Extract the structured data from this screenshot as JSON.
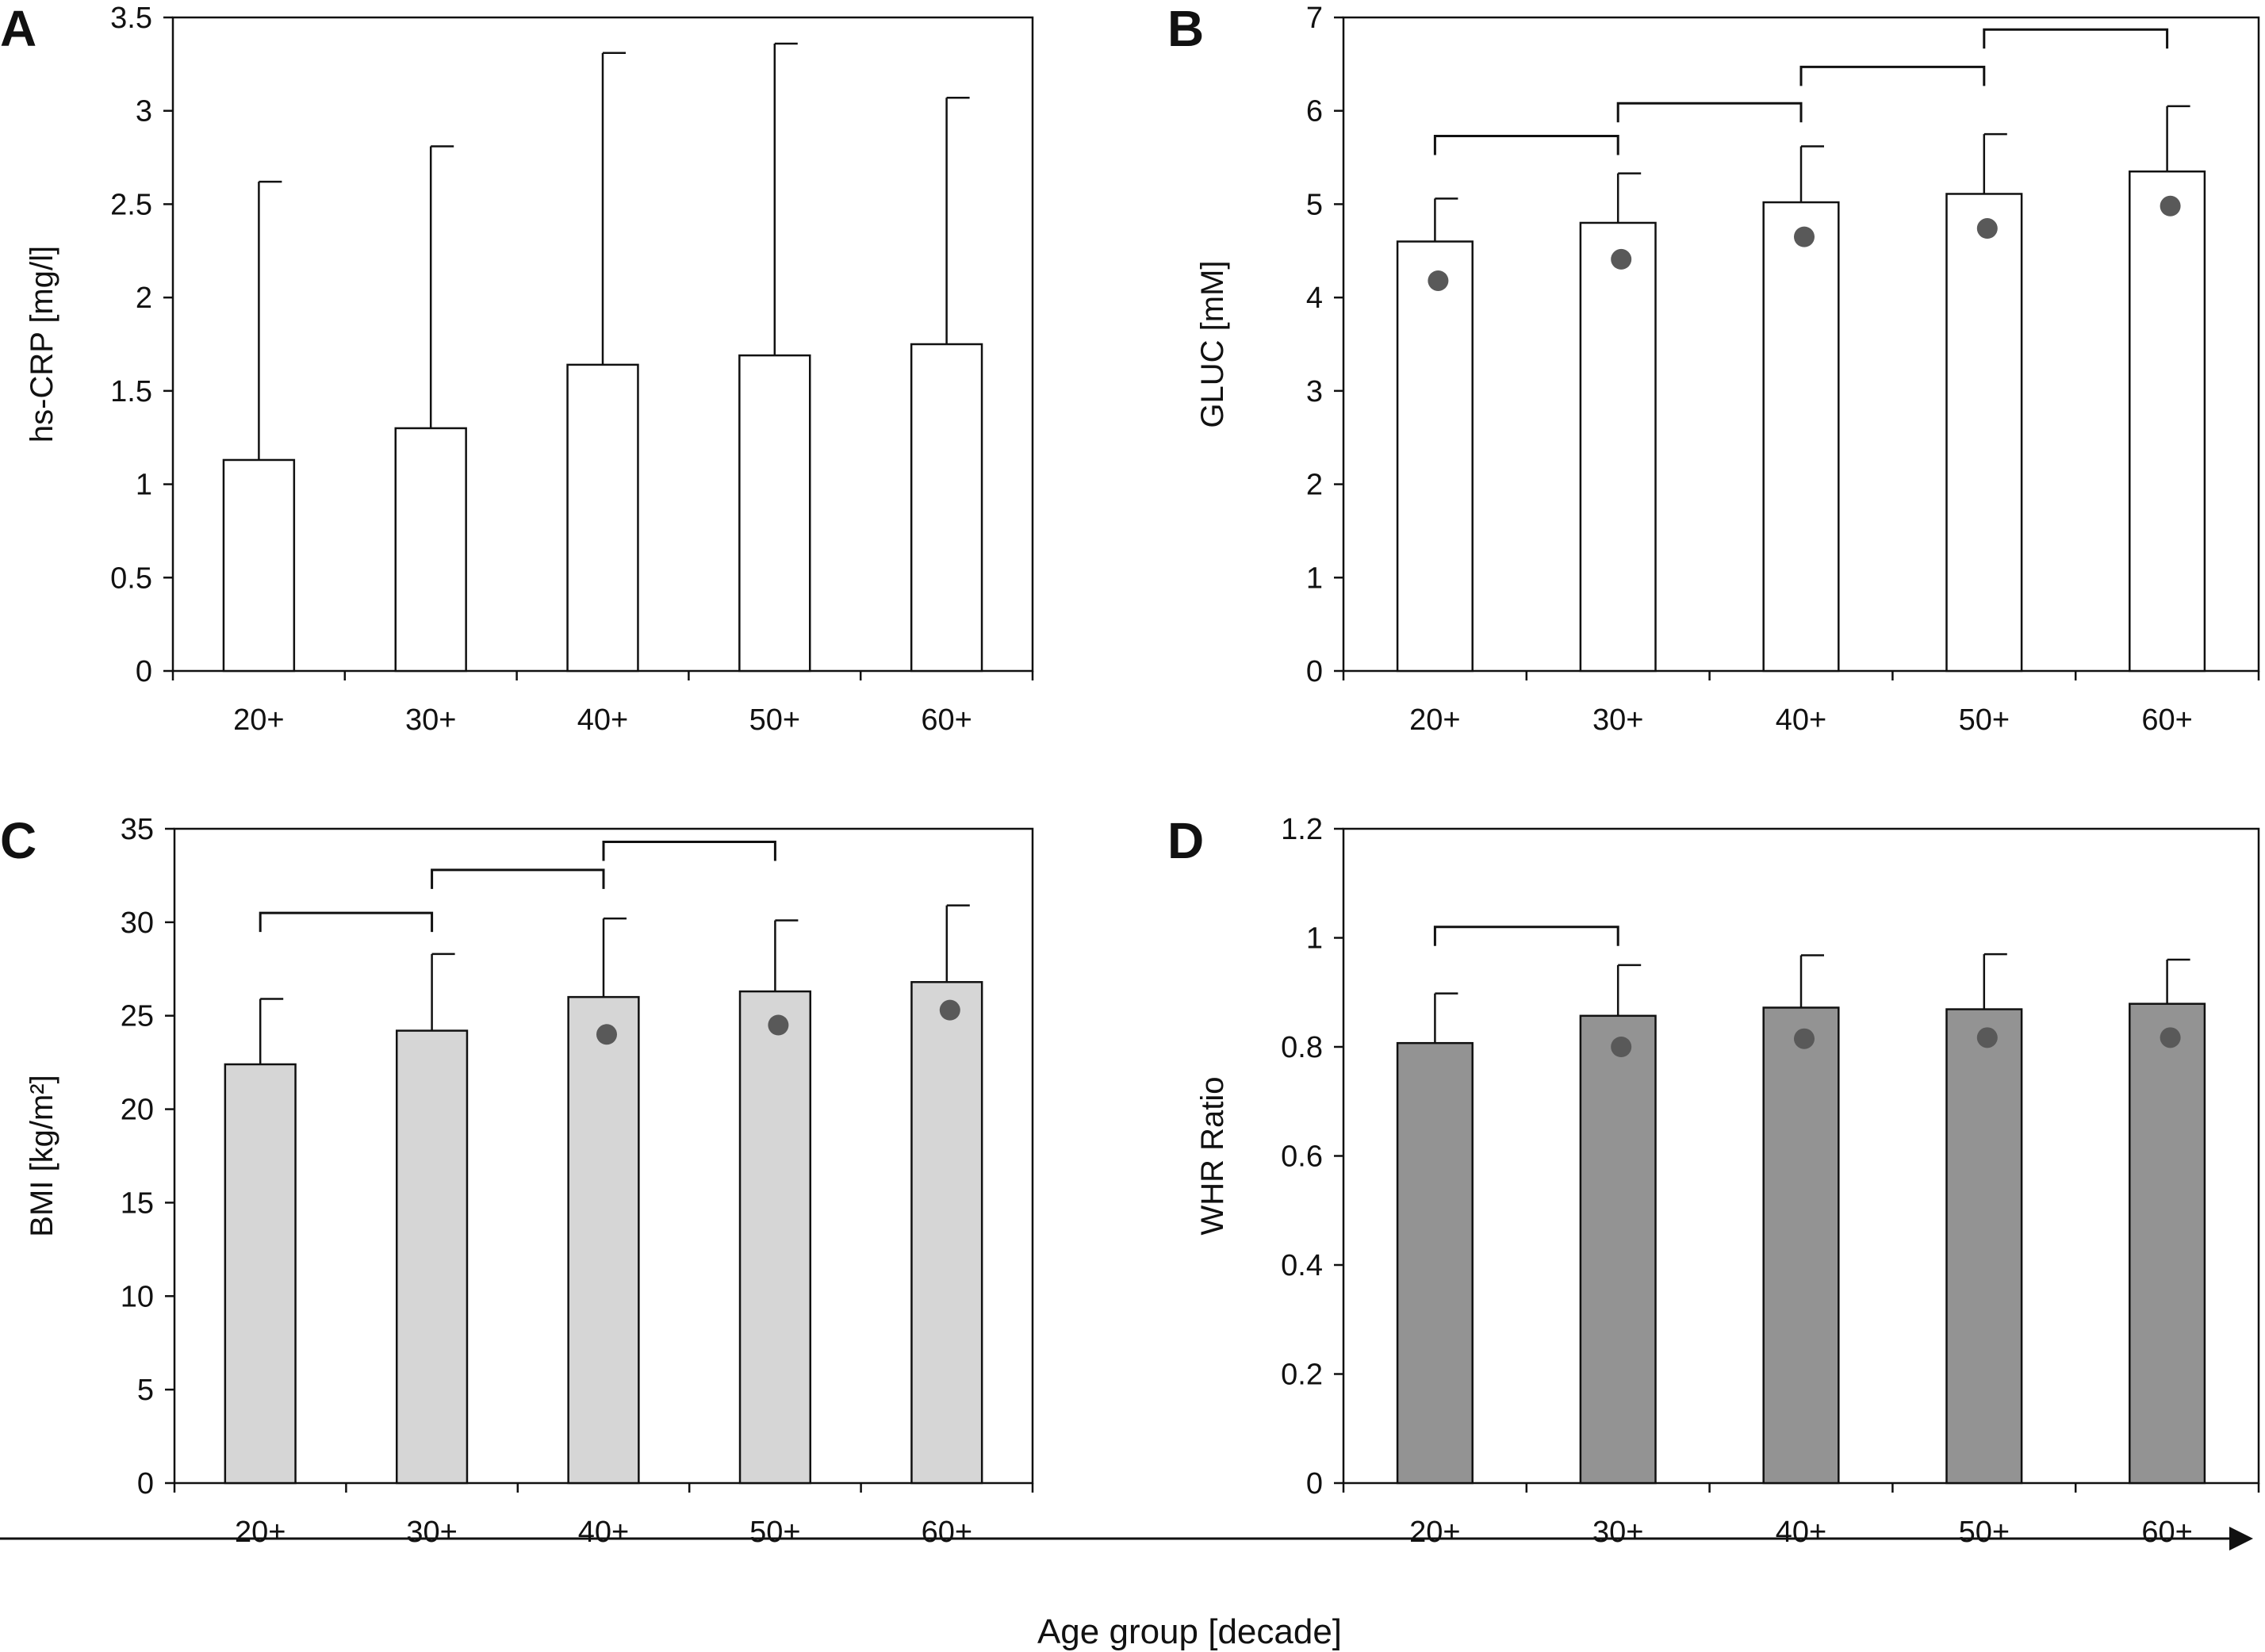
{
  "figure": {
    "xlabel": "Age group [decade]",
    "colors": {
      "axis": "#111111",
      "bar_white": "#ffffff",
      "bar_light": "#d6d6d6",
      "bar_dark": "#939393",
      "dot": "#595959"
    }
  },
  "chart_data": [
    {
      "panel": "A",
      "type": "bar",
      "ylabel": "hs-CRP [mg/l]",
      "ylim": [
        0,
        3.5
      ],
      "yticks": [
        "0",
        "0.5",
        "1",
        "1.5",
        "2",
        "2.5",
        "3",
        "3.5"
      ],
      "categories": [
        "20+",
        "30+",
        "40+",
        "50+",
        "60+"
      ],
      "values": [
        1.13,
        1.3,
        1.64,
        1.69,
        1.75
      ],
      "error_upper": [
        2.62,
        2.81,
        3.31,
        3.36,
        3.07
      ],
      "medians": [],
      "bar_color": "#ffffff",
      "brackets": []
    },
    {
      "panel": "B",
      "type": "bar",
      "ylabel": "GLUC [mM]",
      "ylim": [
        0,
        7
      ],
      "yticks": [
        "0",
        "1",
        "2",
        "3",
        "4",
        "5",
        "6",
        "7"
      ],
      "categories": [
        "20+",
        "30+",
        "40+",
        "50+",
        "60+"
      ],
      "values": [
        4.6,
        4.8,
        5.02,
        5.11,
        5.35
      ],
      "error_upper": [
        5.06,
        5.33,
        5.62,
        5.75,
        6.05
      ],
      "medians": [
        4.18,
        4.41,
        4.65,
        4.74,
        4.98
      ],
      "bar_color": "#ffffff",
      "brackets": [
        {
          "from": 0,
          "to": 1,
          "y": 5.73
        },
        {
          "from": 1,
          "to": 2,
          "y": 6.08
        },
        {
          "from": 2,
          "to": 3,
          "y": 6.47
        },
        {
          "from": 3,
          "to": 4,
          "y": 6.87
        }
      ]
    },
    {
      "panel": "C",
      "type": "bar",
      "ylabel": "BMI [kg/m²]",
      "ylim": [
        0,
        35
      ],
      "yticks": [
        "0",
        "5",
        "10",
        "15",
        "20",
        "25",
        "30",
        "35"
      ],
      "categories": [
        "20+",
        "30+",
        "40+",
        "50+",
        "60+"
      ],
      "values": [
        22.4,
        24.2,
        26.0,
        26.3,
        26.8
      ],
      "error_upper": [
        25.9,
        28.3,
        30.2,
        30.1,
        30.9
      ],
      "medians": [
        null,
        null,
        24.0,
        24.5,
        25.3
      ],
      "bar_color": "#d6d6d6",
      "brackets": [
        {
          "from": 0,
          "to": 1,
          "y": 30.5
        },
        {
          "from": 1,
          "to": 2,
          "y": 32.8
        },
        {
          "from": 2,
          "to": 3,
          "y": 34.3
        }
      ]
    },
    {
      "panel": "D",
      "type": "bar",
      "ylabel": "WHR Ratio",
      "ylim": [
        0,
        1.2
      ],
      "yticks": [
        "0",
        "0.2",
        "0.4",
        "0.6",
        "0.8",
        "1",
        "1.2"
      ],
      "categories": [
        "20+",
        "30+",
        "40+",
        "50+",
        "60+"
      ],
      "values": [
        0.807,
        0.857,
        0.872,
        0.869,
        0.879
      ],
      "error_upper": [
        0.898,
        0.95,
        0.968,
        0.97,
        0.96
      ],
      "medians": [
        null,
        0.8,
        0.815,
        0.817,
        0.817
      ],
      "bar_color": "#939393",
      "brackets": [
        {
          "from": 0,
          "to": 1,
          "y": 1.02
        }
      ]
    }
  ]
}
